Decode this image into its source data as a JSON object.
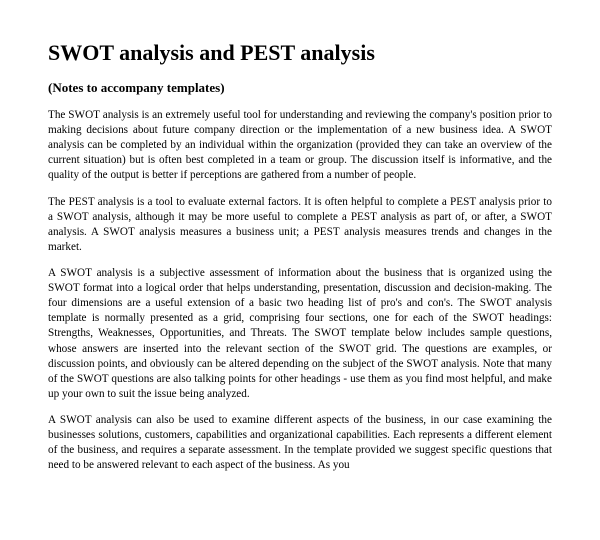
{
  "title": "SWOT analysis and PEST analysis",
  "subtitle": "(Notes to accompany templates)",
  "paragraphs": {
    "p1": "The SWOT analysis is an extremely useful tool for understanding and reviewing the company's position prior to making decisions about future company direction or the implementation of a new business idea. A SWOT analysis can be completed by an individual within the organization (provided they can take an overview of the current situation) but is often best completed in a team or group. The discussion itself is informative, and the quality of the output is better if perceptions are gathered from a number of people.",
    "p2": "The PEST analysis is a tool to evaluate external factors. It is often helpful to complete a PEST analysis prior to a SWOT analysis, although it may be more useful to complete a PEST analysis as part of, or after, a SWOT analysis.  A SWOT analysis measures a business unit; a PEST analysis measures trends and changes in the market.",
    "p3": "A SWOT analysis is a subjective assessment of information about the business that is organized using the SWOT format into a logical order that helps understanding, presentation, discussion and decision-making. The four dimensions are a useful extension of a basic two heading list of pro's and con's. The SWOT analysis template is normally presented as a grid, comprising four sections, one for each of the SWOT headings: Strengths, Weaknesses, Opportunities, and Threats. The SWOT template below includes sample questions, whose answers are inserted into the relevant section of the SWOT grid. The questions are examples, or discussion points, and obviously can be altered depending on the subject of the SWOT analysis. Note that many of the SWOT questions are also talking points for other headings - use them as you find most helpful, and make up your own to suit the issue being analyzed.",
    "p4": "A SWOT analysis can also be used to examine different aspects of the business, in our case examining the businesses solutions, customers, capabilities and organizational capabilities. Each represents a different element of the business, and requires a separate assessment.  In the template provided we suggest specific questions that need to be answered relevant to each aspect of the business. As you"
  },
  "style": {
    "background_color": "#ffffff",
    "text_color": "#000000",
    "title_fontsize": 22,
    "subtitle_fontsize": 13,
    "body_fontsize": 11.2,
    "font_family": "Times New Roman"
  }
}
